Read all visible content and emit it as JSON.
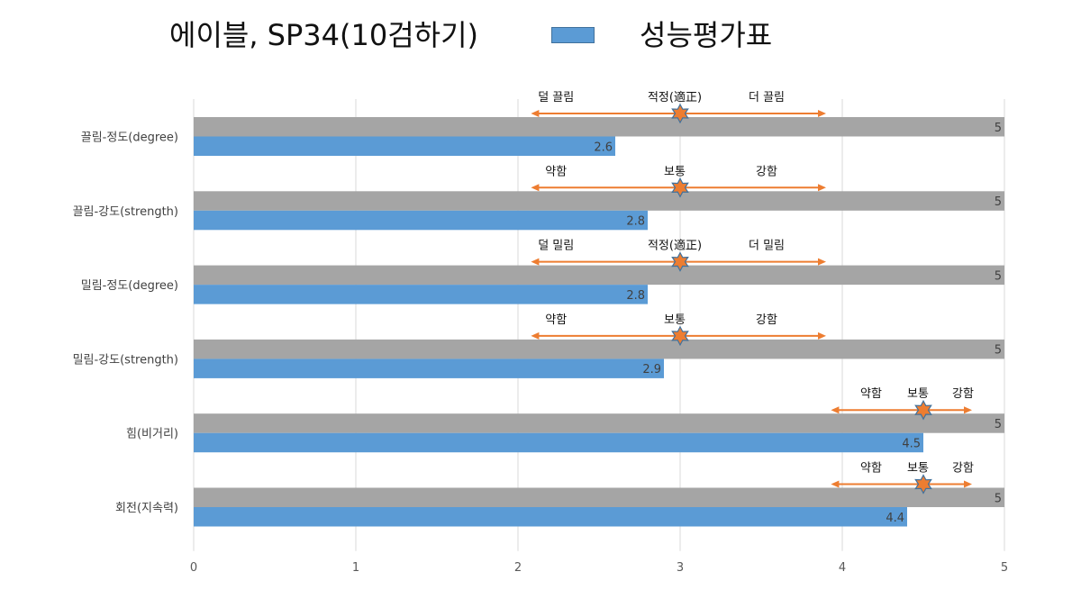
{
  "chart_data": {
    "type": "bar",
    "orientation": "horizontal",
    "title": "에이블, SP34(10검하기)",
    "legend": {
      "position": "top",
      "label": "성능평가표"
    },
    "categories": [
      "끌림-정도(degree)",
      "끌림-강도(strength)",
      "밀림-정도(degree)",
      "밀림-강도(strength)",
      "힘(비거리)",
      "회전(지속력)"
    ],
    "series": [
      {
        "name": "",
        "color": "#a5a5a5",
        "values": [
          5,
          5,
          5,
          5,
          5,
          5
        ]
      },
      {
        "name": "성능평가표",
        "color": "#5b9bd5",
        "values": [
          2.6,
          2.8,
          2.8,
          2.9,
          4.5,
          4.4
        ]
      }
    ],
    "xlim": [
      0,
      5
    ],
    "xticks": [
      0,
      1,
      2,
      3,
      4,
      5
    ],
    "grid": true,
    "data_labels": true,
    "annotations": [
      {
        "category": "끌림-정도(degree)",
        "left": "덜 끌림",
        "center": "적정(適正)",
        "right": "더 끌림",
        "marker_at": 3,
        "arrow_from": 2.08,
        "arrow_to": 3.9,
        "color": "#ed7d31"
      },
      {
        "category": "끌림-강도(strength)",
        "left": "약함",
        "center": "보통",
        "right": "강함",
        "marker_at": 3,
        "arrow_from": 2.08,
        "arrow_to": 3.9,
        "color": "#ed7d31"
      },
      {
        "category": "밀림-정도(degree)",
        "left": "덜 밀림",
        "center": "적정(適正)",
        "right": "더 밀림",
        "marker_at": 3,
        "arrow_from": 2.08,
        "arrow_to": 3.9,
        "color": "#ed7d31"
      },
      {
        "category": "밀림-강도(strength)",
        "left": "약함",
        "center": "보통",
        "right": "강함",
        "marker_at": 3,
        "arrow_from": 2.08,
        "arrow_to": 3.9,
        "color": "#ed7d31"
      },
      {
        "category": "힘(비거리)",
        "left": "약함",
        "center": "보통",
        "right": "강함",
        "marker_at": 4.5,
        "arrow_from": 3.93,
        "arrow_to": 4.8,
        "color": "#ed7d31"
      },
      {
        "category": "회전(지속력)",
        "left": "약함",
        "center": "보통",
        "right": "강함",
        "marker_at": 4.5,
        "arrow_from": 3.93,
        "arrow_to": 4.8,
        "color": "#ed7d31"
      }
    ]
  }
}
